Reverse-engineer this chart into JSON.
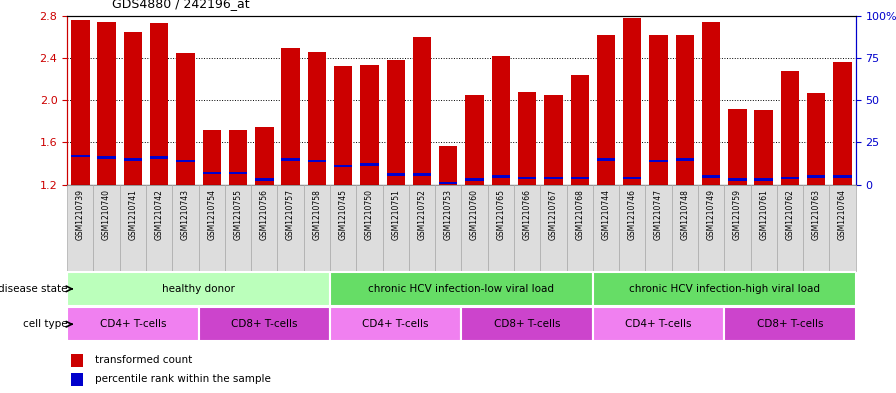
{
  "title": "GDS4880 / 242196_at",
  "samples": [
    "GSM1210739",
    "GSM1210740",
    "GSM1210741",
    "GSM1210742",
    "GSM1210743",
    "GSM1210754",
    "GSM1210755",
    "GSM1210756",
    "GSM1210757",
    "GSM1210758",
    "GSM1210745",
    "GSM1210750",
    "GSM1210751",
    "GSM1210752",
    "GSM1210753",
    "GSM1210760",
    "GSM1210765",
    "GSM1210766",
    "GSM1210767",
    "GSM1210768",
    "GSM1210744",
    "GSM1210746",
    "GSM1210747",
    "GSM1210748",
    "GSM1210749",
    "GSM1210759",
    "GSM1210761",
    "GSM1210762",
    "GSM1210763",
    "GSM1210764"
  ],
  "transformed_count": [
    2.76,
    2.74,
    2.65,
    2.73,
    2.45,
    1.72,
    1.72,
    1.75,
    2.49,
    2.46,
    2.32,
    2.33,
    2.38,
    2.6,
    1.57,
    2.05,
    2.42,
    2.08,
    2.05,
    2.24,
    2.62,
    2.78,
    2.62,
    2.62,
    2.74,
    1.92,
    1.91,
    2.28,
    2.07,
    2.36
  ],
  "percentile_rank": [
    17,
    16,
    15,
    16,
    14,
    7,
    7,
    3,
    15,
    14,
    11,
    12,
    6,
    6,
    1,
    3,
    5,
    4,
    4,
    4,
    15,
    4,
    14,
    15,
    5,
    3,
    3,
    4,
    5,
    5
  ],
  "bar_bottom": 1.2,
  "ylim_left": [
    1.2,
    2.8
  ],
  "ylim_right": [
    0,
    100
  ],
  "yticks_left": [
    1.2,
    1.6,
    2.0,
    2.4,
    2.8
  ],
  "yticks_right": [
    0,
    25,
    50,
    75,
    100
  ],
  "bar_color": "#cc0000",
  "marker_color": "#0000cc",
  "disease_state_groups": [
    {
      "label": "healthy donor",
      "start": 0,
      "end": 9,
      "color": "#bbffbb"
    },
    {
      "label": "chronic HCV infection-low viral load",
      "start": 10,
      "end": 19,
      "color": "#88ee88"
    },
    {
      "label": "chronic HCV infection-high viral load",
      "start": 20,
      "end": 29,
      "color": "#88ee88"
    }
  ],
  "cell_type_groups": [
    {
      "label": "CD4+ T-cells",
      "start": 0,
      "end": 4,
      "type": "cd4"
    },
    {
      "label": "CD8+ T-cells",
      "start": 5,
      "end": 9,
      "type": "cd8"
    },
    {
      "label": "CD4+ T-cells",
      "start": 10,
      "end": 14,
      "type": "cd4"
    },
    {
      "label": "CD8+ T-cells",
      "start": 15,
      "end": 19,
      "type": "cd8"
    },
    {
      "label": "CD4+ T-cells",
      "start": 20,
      "end": 24,
      "type": "cd4"
    },
    {
      "label": "CD8+ T-cells",
      "start": 25,
      "end": 29,
      "type": "cd8"
    }
  ],
  "disease_state_label": "disease state",
  "cell_type_label": "cell type",
  "legend_transformed": "transformed count",
  "legend_percentile": "percentile rank within the sample",
  "cd4_color": "#f080f0",
  "cd8_color": "#cc44cc",
  "ds_color": "#bbffbb",
  "ds_color2": "#66dd66",
  "label_bg": "#dddddd",
  "label_border": "#aaaaaa",
  "bg_color": "#ffffff"
}
